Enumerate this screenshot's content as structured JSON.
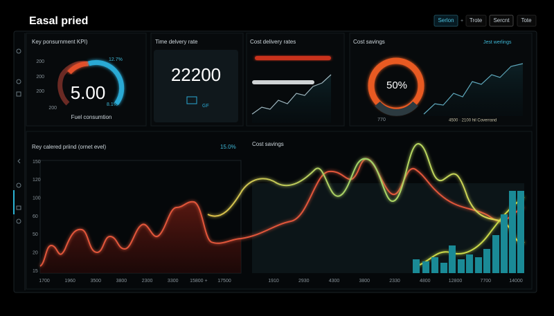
{
  "header": {
    "title": "Easal pried",
    "tabs": [
      "Serlon",
      "+",
      "Trote",
      "Sercnt",
      "Tote"
    ]
  },
  "cards": [
    {
      "title": "Key ponsurnment KPI)",
      "value": "5.00",
      "caption": "Fuel consumtion",
      "scale": [
        "200",
        "200",
        "200",
        "200"
      ],
      "notes": [
        "12.7%",
        "8.1%"
      ]
    },
    {
      "title": "Time delvery rate",
      "value": "22200",
      "icon_text": "GF"
    },
    {
      "title": "Cost delivery rates"
    },
    {
      "title": "Cost savings",
      "menu": "Jest werlings",
      "value": "50%",
      "sub": "770",
      "legend": "4500 · 2100 hil Coverrand"
    }
  ],
  "bottom": {
    "title": "Rey calered priind (ornet evel)",
    "badge": "15.0%",
    "right_title": "Cost savings",
    "left_yticks": [
      "150",
      "120",
      "100",
      "60",
      "50",
      "20",
      "15"
    ],
    "left_xticks": [
      "1700",
      "1960",
      "3500",
      "3800",
      "2300",
      "3300",
      "15800 +",
      "17500"
    ],
    "right_xticks": [
      "1910",
      "2930",
      "4300",
      "3800",
      "2330",
      "4800",
      "12800",
      "7700",
      "14000"
    ]
  }
}
